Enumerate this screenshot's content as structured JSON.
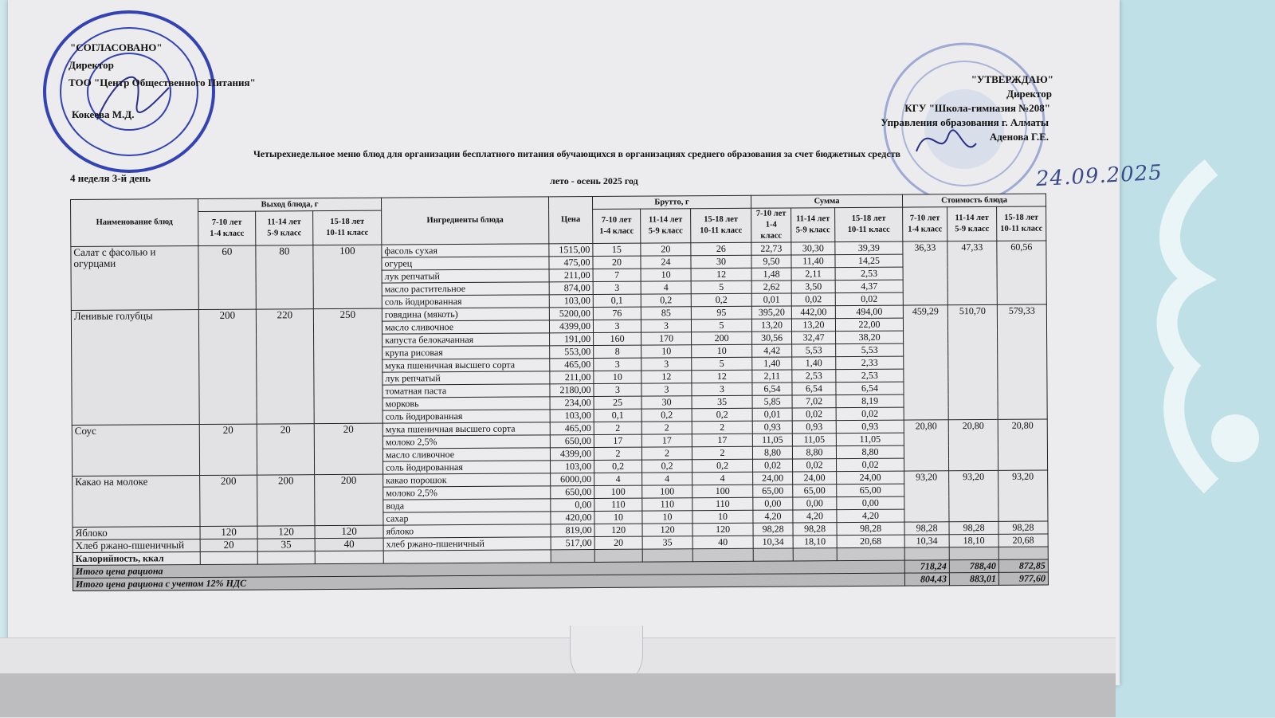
{
  "approved_left": {
    "title": "\"СОГЛАСОВАНО\"",
    "position": "Директор",
    "org": "ТОО \"Центр Общественного Питания\"",
    "name": "Кокеева М.Д."
  },
  "approved_right": {
    "title": "\"УТВЕРЖДАЮ\"",
    "position": "Директор",
    "org": "КГУ  \"Школа-гимназия №208\"",
    "dept": "Управления образования г. Алматы",
    "name": "Аденова Г.Е."
  },
  "stamps": {
    "left_outer": "Қазақстан Республикасы Алматы қаласы Жауапкершілігі шектеулі серіктестігі",
    "left_center": "Центр Общественного Питания",
    "left_id": "БИН/ИИН 000640004579",
    "right_outer": "Алматы қаласы Білім басқармасының №208 коммуналдық мемлекеттік мекемесі"
  },
  "handwritten_date": "24.09.2025",
  "doc_title": "Четырехнедельное меню блюд для организации бесплатного питания обучающихся в организациях среднего образования за счет бюджетных средств",
  "week_day": "4 неделя 3-й день",
  "season": "лето - осень 2025 год",
  "table": {
    "headers": {
      "dish": "Наименование блюд",
      "yield": "Выход блюда, г",
      "ingredients": "Ингредиенты блюда",
      "price": "Цена",
      "brutto": "Брутто, г",
      "sum": "Сумма",
      "cost": "Стоимость блюда",
      "age_groups": [
        {
          "age": "7-10 лет",
          "grade": "1-4 класс"
        },
        {
          "age": "11-14 лет",
          "grade": "5-9 класс"
        },
        {
          "age": "15-18 лет",
          "grade": "10-11 класс"
        }
      ]
    },
    "dishes": [
      {
        "name": "Салат с фасолью и огурцами",
        "yield": [
          "60",
          "80",
          "100"
        ],
        "cost": [
          "36,33",
          "47,33",
          "60,56"
        ],
        "ingredients": [
          {
            "name": "фасоль сухая",
            "price": "1515,00",
            "brutto": [
              "15",
              "20",
              "26"
            ],
            "sum": [
              "22,73",
              "30,30",
              "39,39"
            ]
          },
          {
            "name": "огурец",
            "price": "475,00",
            "brutto": [
              "20",
              "24",
              "30"
            ],
            "sum": [
              "9,50",
              "11,40",
              "14,25"
            ]
          },
          {
            "name": "лук репчатый",
            "price": "211,00",
            "brutto": [
              "7",
              "10",
              "12"
            ],
            "sum": [
              "1,48",
              "2,11",
              "2,53"
            ]
          },
          {
            "name": "масло растительное",
            "price": "874,00",
            "brutto": [
              "3",
              "4",
              "5"
            ],
            "sum": [
              "2,62",
              "3,50",
              "4,37"
            ]
          },
          {
            "name": "соль йодированная",
            "price": "103,00",
            "brutto": [
              "0,1",
              "0,2",
              "0,2"
            ],
            "sum": [
              "0,01",
              "0,02",
              "0,02"
            ]
          }
        ]
      },
      {
        "name": "Ленивые голубцы",
        "yield": [
          "200",
          "220",
          "250"
        ],
        "cost": [
          "459,29",
          "510,70",
          "579,33"
        ],
        "ingredients": [
          {
            "name": "говядина (мякоть)",
            "price": "5200,00",
            "brutto": [
              "76",
              "85",
              "95"
            ],
            "sum": [
              "395,20",
              "442,00",
              "494,00"
            ]
          },
          {
            "name": "масло сливочное",
            "price": "4399,00",
            "brutto": [
              "3",
              "3",
              "5"
            ],
            "sum": [
              "13,20",
              "13,20",
              "22,00"
            ]
          },
          {
            "name": "капуста белокачанная",
            "price": "191,00",
            "brutto": [
              "160",
              "170",
              "200"
            ],
            "sum": [
              "30,56",
              "32,47",
              "38,20"
            ]
          },
          {
            "name": "крупа рисовая",
            "price": "553,00",
            "brutto": [
              "8",
              "10",
              "10"
            ],
            "sum": [
              "4,42",
              "5,53",
              "5,53"
            ]
          },
          {
            "name": "мука пшеничная высшего сорта",
            "price": "465,00",
            "brutto": [
              "3",
              "3",
              "5"
            ],
            "sum": [
              "1,40",
              "1,40",
              "2,33"
            ]
          },
          {
            "name": "лук репчатый",
            "price": "211,00",
            "brutto": [
              "10",
              "12",
              "12"
            ],
            "sum": [
              "2,11",
              "2,53",
              "2,53"
            ]
          },
          {
            "name": "томатная паста",
            "price": "2180,00",
            "brutto": [
              "3",
              "3",
              "3"
            ],
            "sum": [
              "6,54",
              "6,54",
              "6,54"
            ]
          },
          {
            "name": "морковь",
            "price": "234,00",
            "brutto": [
              "25",
              "30",
              "35"
            ],
            "sum": [
              "5,85",
              "7,02",
              "8,19"
            ]
          },
          {
            "name": "соль йодированная",
            "price": "103,00",
            "brutto": [
              "0,1",
              "0,2",
              "0,2"
            ],
            "sum": [
              "0,01",
              "0,02",
              "0,02"
            ]
          }
        ]
      },
      {
        "name": "Соус",
        "yield": [
          "20",
          "20",
          "20"
        ],
        "cost": [
          "20,80",
          "20,80",
          "20,80"
        ],
        "ingredients": [
          {
            "name": "мука пшеничная высшего сорта",
            "price": "465,00",
            "brutto": [
              "2",
              "2",
              "2"
            ],
            "sum": [
              "0,93",
              "0,93",
              "0,93"
            ]
          },
          {
            "name": "молоко 2,5%",
            "price": "650,00",
            "brutto": [
              "17",
              "17",
              "17"
            ],
            "sum": [
              "11,05",
              "11,05",
              "11,05"
            ]
          },
          {
            "name": "масло сливочное",
            "price": "4399,00",
            "brutto": [
              "2",
              "2",
              "2"
            ],
            "sum": [
              "8,80",
              "8,80",
              "8,80"
            ]
          },
          {
            "name": "соль йодированная",
            "price": "103,00",
            "brutto": [
              "0,2",
              "0,2",
              "0,2"
            ],
            "sum": [
              "0,02",
              "0,02",
              "0,02"
            ]
          }
        ]
      },
      {
        "name": "Какао на молоке",
        "yield": [
          "200",
          "200",
          "200"
        ],
        "cost": [
          "93,20",
          "93,20",
          "93,20"
        ],
        "ingredients": [
          {
            "name": "какао порошок",
            "price": "6000,00",
            "brutto": [
              "4",
              "4",
              "4"
            ],
            "sum": [
              "24,00",
              "24,00",
              "24,00"
            ]
          },
          {
            "name": "молоко 2,5%",
            "price": "650,00",
            "brutto": [
              "100",
              "100",
              "100"
            ],
            "sum": [
              "65,00",
              "65,00",
              "65,00"
            ]
          },
          {
            "name": "вода",
            "price": "0,00",
            "brutto": [
              "110",
              "110",
              "110"
            ],
            "sum": [
              "0,00",
              "0,00",
              "0,00"
            ]
          },
          {
            "name": "сахар",
            "price": "420,00",
            "brutto": [
              "10",
              "10",
              "10"
            ],
            "sum": [
              "4,20",
              "4,20",
              "4,20"
            ]
          }
        ]
      },
      {
        "name": "Яблоко",
        "yield": [
          "120",
          "120",
          "120"
        ],
        "cost": [
          "98,28",
          "98,28",
          "98,28"
        ],
        "ingredients": [
          {
            "name": "яблоко",
            "price": "819,00",
            "brutto": [
              "120",
              "120",
              "120"
            ],
            "sum": [
              "98,28",
              "98,28",
              "98,28"
            ]
          }
        ]
      },
      {
        "name": "Хлеб ржано-пшеничный",
        "yield": [
          "20",
          "35",
          "40"
        ],
        "cost": [
          "10,34",
          "18,10",
          "20,68"
        ],
        "ingredients": [
          {
            "name": "хлеб ржано-пшеничный",
            "price": "517,00",
            "brutto": [
              "20",
              "35",
              "40"
            ],
            "sum": [
              "10,34",
              "18,10",
              "20,68"
            ]
          }
        ]
      }
    ],
    "calories_label": "Калорийность, ккал",
    "total_label": "Итого цена рациона",
    "total_values": [
      "718,24",
      "788,40",
      "872,85"
    ],
    "total_vat_label": "Итого цена рациона с учетом 12% НДС",
    "total_vat_values": [
      "804,43",
      "883,01",
      "977,60"
    ]
  }
}
